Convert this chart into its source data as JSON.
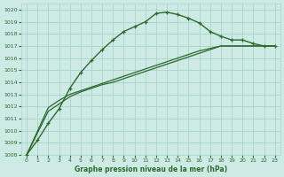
{
  "title": "Graphe pression niveau de la mer (hPa)",
  "bg_color": "#cdeae4",
  "grid_color": "#a8d5cc",
  "line_color": "#2d6a2d",
  "xlim": [
    -0.5,
    23.5
  ],
  "ylim": [
    1008,
    1020.5
  ],
  "xticks": [
    0,
    1,
    2,
    3,
    4,
    5,
    6,
    7,
    8,
    9,
    10,
    11,
    12,
    13,
    14,
    15,
    16,
    17,
    18,
    19,
    20,
    21,
    22,
    23
  ],
  "yticks": [
    1008,
    1009,
    1010,
    1011,
    1012,
    1013,
    1014,
    1015,
    1016,
    1017,
    1018,
    1019,
    1020
  ],
  "series1_x": [
    0,
    1,
    2,
    3,
    4,
    5,
    6,
    7,
    8,
    9,
    10,
    11,
    12,
    13,
    14,
    15,
    16,
    17,
    18,
    19,
    20,
    21,
    22,
    23
  ],
  "series1_y": [
    1008.0,
    1009.2,
    1010.6,
    1011.8,
    1013.5,
    1014.8,
    1015.8,
    1016.7,
    1017.5,
    1018.2,
    1018.6,
    1019.0,
    1019.7,
    1019.8,
    1019.6,
    1019.3,
    1018.9,
    1018.2,
    1017.8,
    1017.5,
    1017.5,
    1017.2,
    1017.0,
    1017.0
  ],
  "series2_x": [
    0,
    2,
    3,
    4,
    5,
    6,
    7,
    8,
    9,
    10,
    11,
    12,
    13,
    14,
    15,
    16,
    17,
    18,
    19,
    20,
    21,
    22,
    23
  ],
  "series2_y": [
    1008.0,
    1011.6,
    1012.2,
    1012.8,
    1013.2,
    1013.5,
    1013.8,
    1014.0,
    1014.3,
    1014.6,
    1014.9,
    1015.2,
    1015.5,
    1015.8,
    1016.1,
    1016.4,
    1016.7,
    1017.0,
    1017.0,
    1017.0,
    1017.0,
    1017.0,
    1017.0
  ],
  "series3_x": [
    0,
    2,
    3,
    4,
    5,
    6,
    7,
    8,
    9,
    10,
    11,
    12,
    13,
    14,
    15,
    16,
    17,
    18,
    19,
    20,
    21,
    22,
    23
  ],
  "series3_y": [
    1008.0,
    1011.9,
    1012.5,
    1013.0,
    1013.3,
    1013.6,
    1013.9,
    1014.2,
    1014.5,
    1014.8,
    1015.1,
    1015.4,
    1015.7,
    1016.0,
    1016.3,
    1016.6,
    1016.8,
    1017.0,
    1017.0,
    1017.0,
    1017.0,
    1017.0,
    1017.0
  ]
}
